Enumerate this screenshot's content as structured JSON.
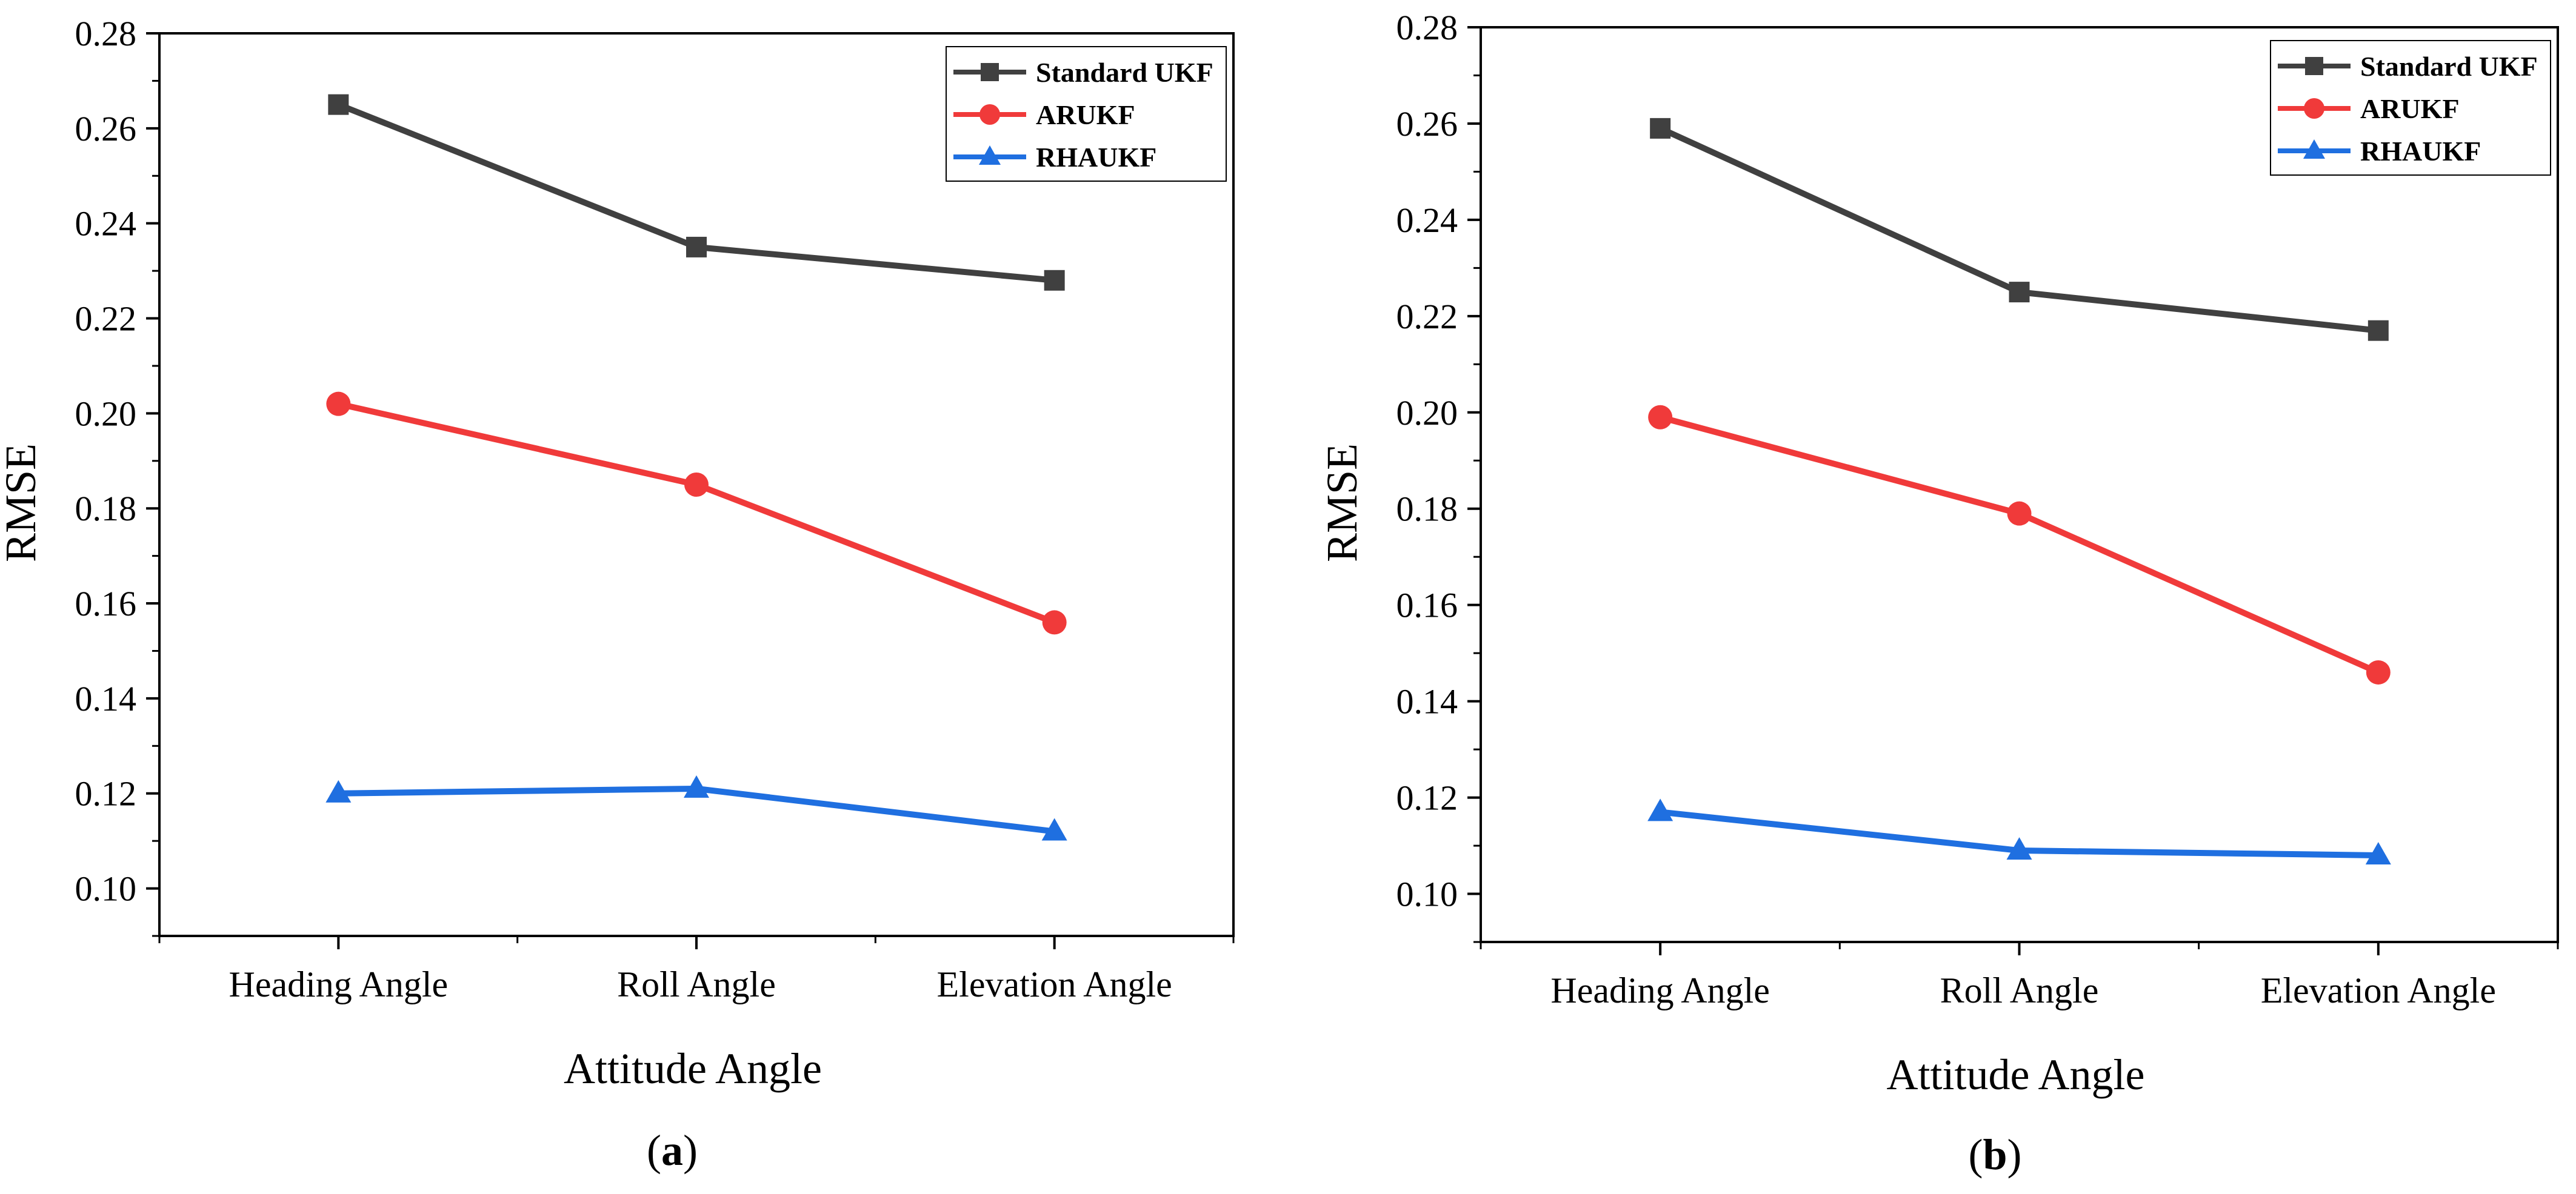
{
  "chart_data": [
    {
      "type": "line",
      "panel": "a",
      "caption": {
        "open": "(",
        "letter": "a",
        "close": ")"
      },
      "categories": [
        "Heading Angle",
        "Roll Angle",
        "Elevation Angle"
      ],
      "series": [
        {
          "name": "Standard UKF",
          "values": [
            0.265,
            0.235,
            0.228
          ],
          "color": "#404040",
          "marker": "square"
        },
        {
          "name": "ARUKF",
          "values": [
            0.202,
            0.185,
            0.156
          ],
          "color": "#f03a3a",
          "marker": "circle"
        },
        {
          "name": "RHAUKF",
          "values": [
            0.12,
            0.121,
            0.112
          ],
          "color": "#1f6fe0",
          "marker": "triangle"
        }
      ],
      "title": "",
      "xlabel": "Attitude Angle",
      "ylabel": "RMSE",
      "ylim": [
        0.09,
        0.28
      ],
      "yticks": [
        "0.10",
        "0.12",
        "0.14",
        "0.16",
        "0.18",
        "0.20",
        "0.22",
        "0.24",
        "0.26",
        "0.28"
      ],
      "legend": "top-right",
      "grid": false
    },
    {
      "type": "line",
      "panel": "b",
      "caption": {
        "open": "(",
        "letter": "b",
        "close": ")"
      },
      "categories": [
        "Heading Angle",
        "Roll Angle",
        "Elevation Angle"
      ],
      "series": [
        {
          "name": "Standard UKF",
          "values": [
            0.259,
            0.225,
            0.217
          ],
          "color": "#404040",
          "marker": "square"
        },
        {
          "name": "ARUKF",
          "values": [
            0.199,
            0.179,
            0.146
          ],
          "color": "#f03a3a",
          "marker": "circle"
        },
        {
          "name": "RHAUKF",
          "values": [
            0.117,
            0.109,
            0.108
          ],
          "color": "#1f6fe0",
          "marker": "triangle"
        }
      ],
      "title": "",
      "xlabel": "Attitude Angle",
      "ylabel": "RMSE",
      "ylim": [
        0.09,
        0.28
      ],
      "yticks": [
        "0.10",
        "0.12",
        "0.14",
        "0.16",
        "0.18",
        "0.20",
        "0.22",
        "0.24",
        "0.26",
        "0.28"
      ],
      "legend": "top-right",
      "grid": false
    }
  ]
}
